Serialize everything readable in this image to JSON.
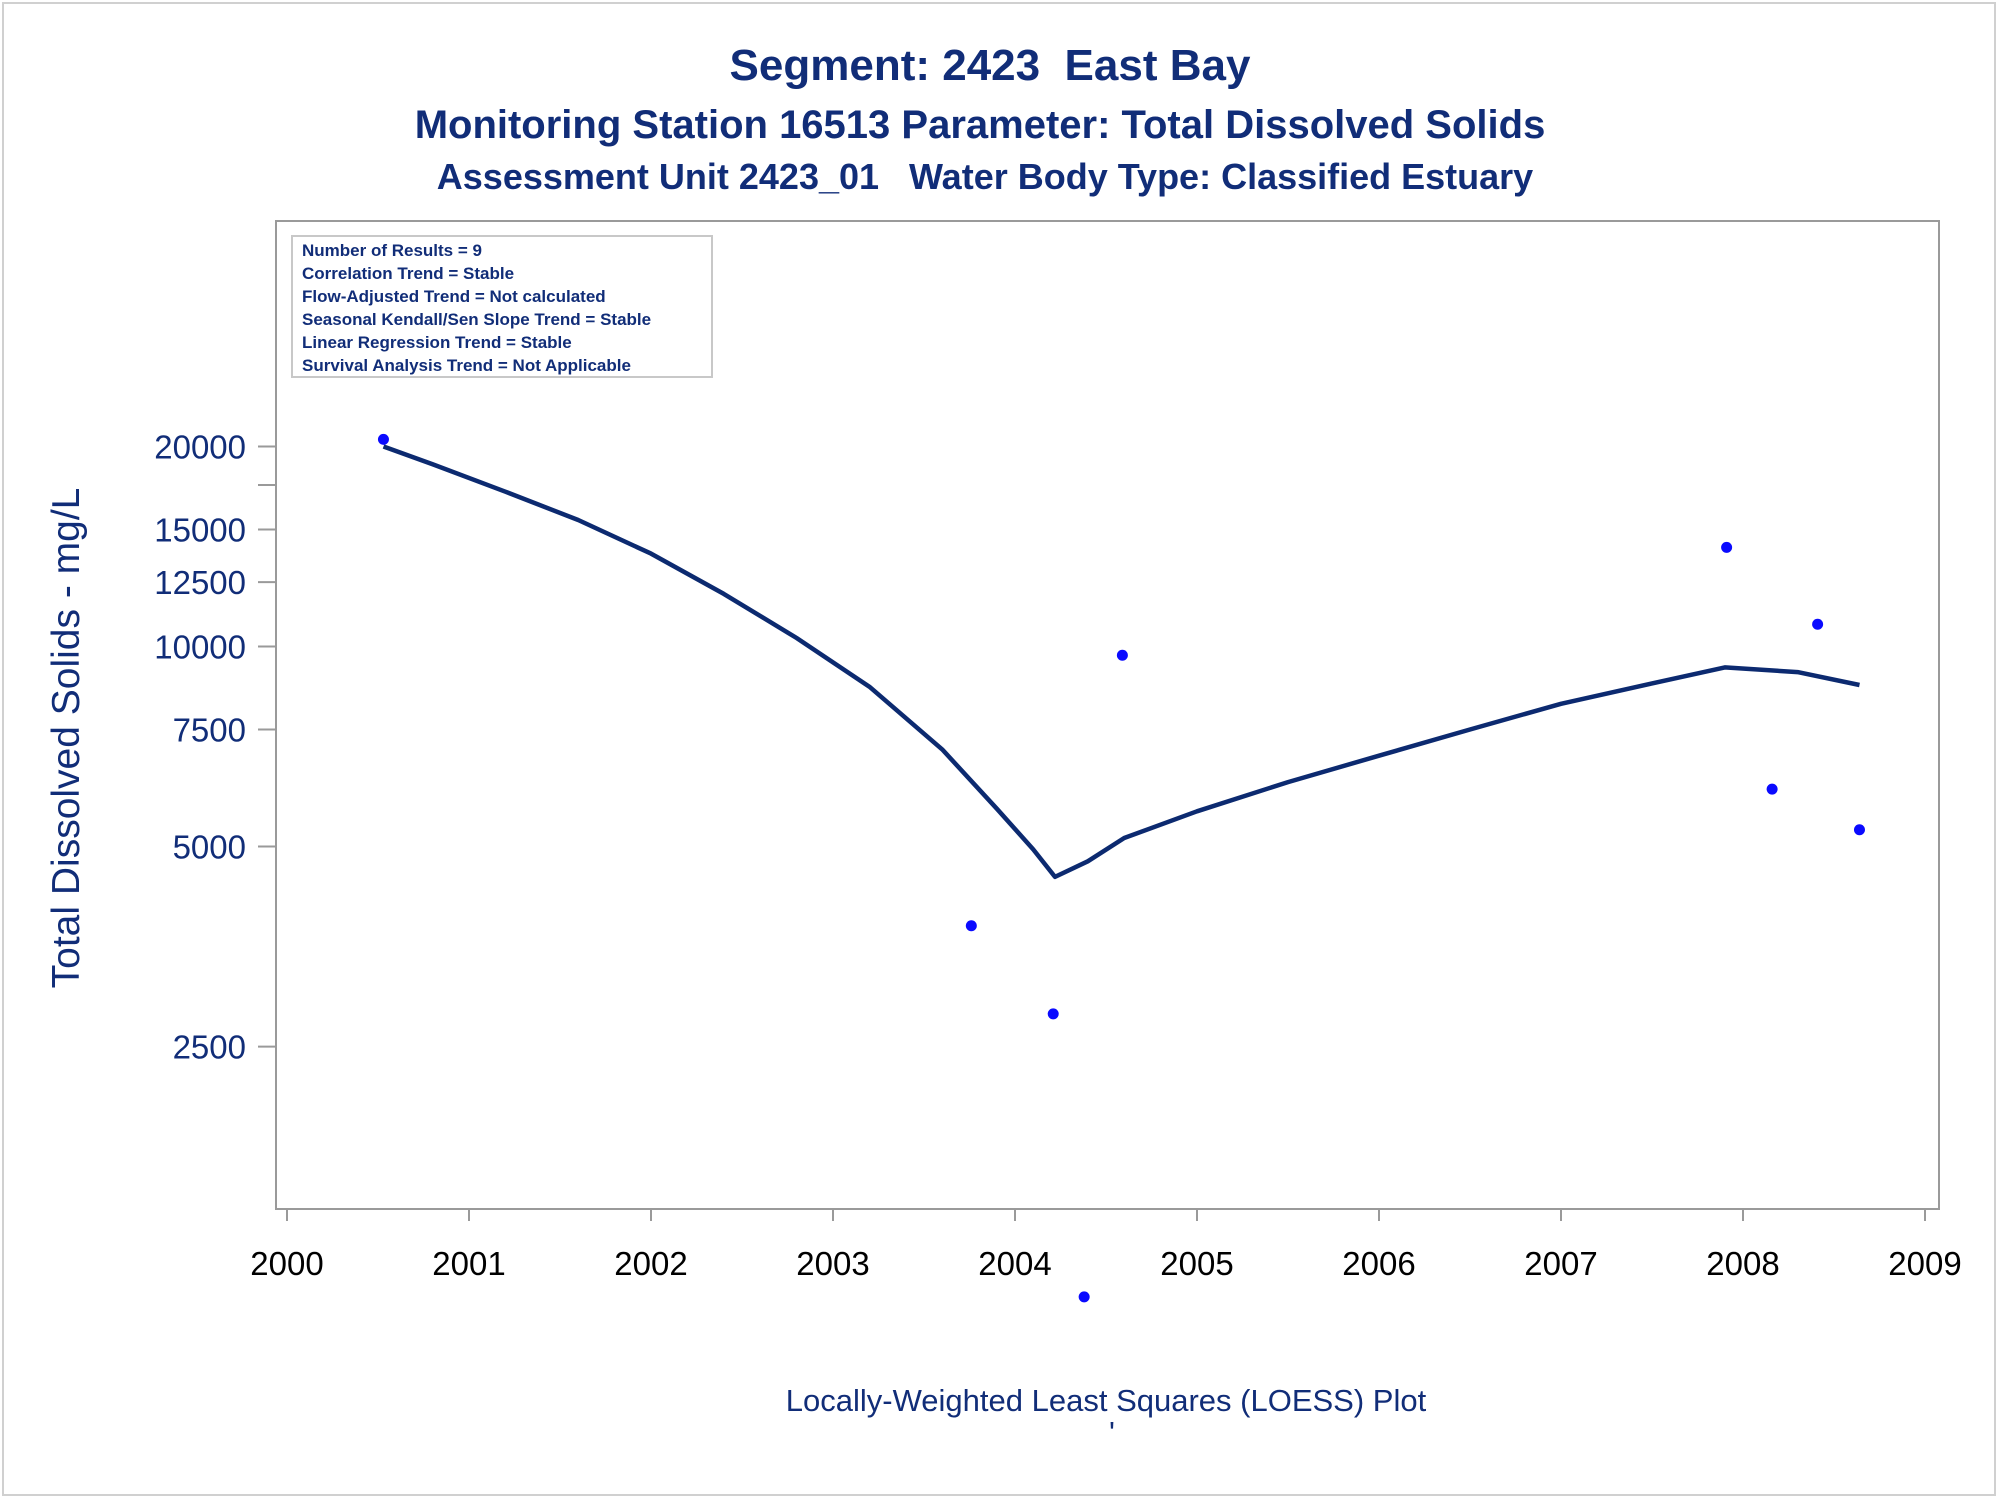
{
  "colors": {
    "title": "#112d78",
    "axis_frame": "#9a9a9a",
    "y_tick_text": "#112d78",
    "x_tick_text": "#000000",
    "loess_line": "#0c2a70",
    "points": "#0a0aff"
  },
  "chart_data": {
    "type": "scatter",
    "title": "Segment: 2423  East Bay",
    "subtitle": "Monitoring Station 16513 Parameter: Total Dissolved Solids",
    "subtitle2": "Assessment Unit 2423_01   Water Body Type: Classified Estuary",
    "ylabel": "Total Dissolved Solids - mg/L",
    "xlabel": "Locally-Weighted Least Squares (LOESS) Plot",
    "footnote": "'",
    "y_scale": "log",
    "xlim": [
      1999.93,
      2009.1
    ],
    "ylim": [
      1050,
      22000
    ],
    "x_ticks": [
      2000,
      2001,
      2002,
      2003,
      2004,
      2005,
      2006,
      2007,
      2008,
      2009
    ],
    "y_ticks": [
      2500,
      5000,
      7500,
      10000,
      12500,
      15000,
      20000
    ],
    "y_minor_ticks": [
      17500
    ],
    "grid": false,
    "stats_box": {
      "position": "top-left",
      "lines": [
        "Number of Results = 9",
        "Correlation Trend = Stable",
        "Flow-Adjusted Trend = Not calculated",
        "Seasonal Kendall/Sen Slope Trend = Stable",
        "Linear Regression Trend = Stable",
        "Survival Analysis Trend = Not Applicable"
      ]
    },
    "series": [
      {
        "kind": "points",
        "x": [
          2000.53,
          2003.76,
          2004.21,
          2004.38,
          2004.59,
          2007.91,
          2008.16,
          2008.41,
          2008.64
        ],
        "y": [
          20500,
          3800,
          2800,
          1050,
          9700,
          14100,
          6100,
          10800,
          5300
        ]
      },
      {
        "kind": "loess_line",
        "x": [
          2000.53,
          2000.8,
          2001.2,
          2001.6,
          2002.0,
          2002.4,
          2002.8,
          2003.2,
          2003.6,
          2003.9,
          2004.1,
          2004.22,
          2004.4,
          2004.6,
          2005.0,
          2005.5,
          2006.0,
          2006.5,
          2007.0,
          2007.5,
          2007.9,
          2008.3,
          2008.64
        ],
        "y": [
          20000,
          18800,
          17100,
          15500,
          13800,
          12000,
          10300,
          8700,
          7000,
          5700,
          4950,
          4500,
          4750,
          5150,
          5650,
          6250,
          6850,
          7500,
          8200,
          8800,
          9300,
          9150,
          8750
        ]
      }
    ]
  }
}
